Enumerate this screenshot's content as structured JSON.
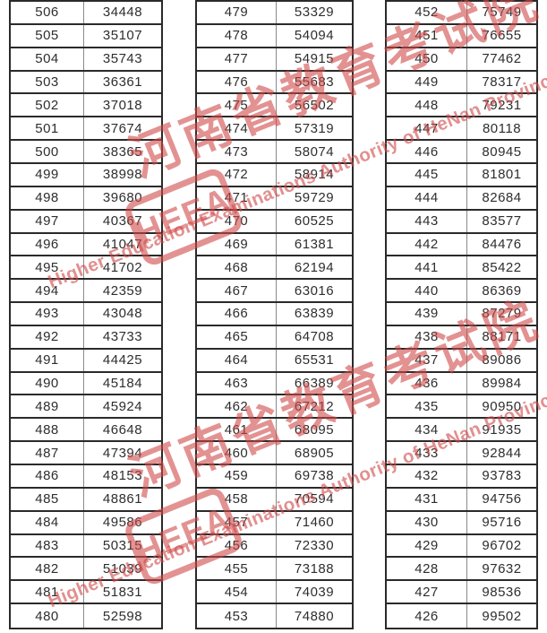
{
  "watermark": {
    "logo_text": "HEEA",
    "cn_text": "河南省教育考试院",
    "en_text": "Higher Education Examinations Authority of HeNan Province",
    "color": "#d04a4a"
  },
  "table": {
    "description": "score / cumulative count segments",
    "groups": [
      {
        "rows": [
          {
            "score": "506",
            "count": "34448"
          },
          {
            "score": "505",
            "count": "35107"
          },
          {
            "score": "504",
            "count": "35743"
          },
          {
            "score": "503",
            "count": "36361"
          },
          {
            "score": "502",
            "count": "37018"
          },
          {
            "score": "501",
            "count": "37674"
          },
          {
            "score": "500",
            "count": "38365"
          },
          {
            "score": "499",
            "count": "38998"
          },
          {
            "score": "498",
            "count": "39680"
          },
          {
            "score": "497",
            "count": "40367"
          },
          {
            "score": "496",
            "count": "41047"
          },
          {
            "score": "495",
            "count": "41702"
          },
          {
            "score": "494",
            "count": "42359"
          },
          {
            "score": "493",
            "count": "43048"
          },
          {
            "score": "492",
            "count": "43733"
          },
          {
            "score": "491",
            "count": "44425"
          },
          {
            "score": "490",
            "count": "45184"
          },
          {
            "score": "489",
            "count": "45924"
          },
          {
            "score": "488",
            "count": "46648"
          },
          {
            "score": "487",
            "count": "47394"
          },
          {
            "score": "486",
            "count": "48153"
          },
          {
            "score": "485",
            "count": "48861"
          },
          {
            "score": "484",
            "count": "49586"
          },
          {
            "score": "483",
            "count": "50315"
          },
          {
            "score": "482",
            "count": "51039"
          },
          {
            "score": "481",
            "count": "51831"
          },
          {
            "score": "480",
            "count": "52598"
          }
        ]
      },
      {
        "rows": [
          {
            "score": "479",
            "count": "53329"
          },
          {
            "score": "478",
            "count": "54094"
          },
          {
            "score": "477",
            "count": "54915"
          },
          {
            "score": "476",
            "count": "55683"
          },
          {
            "score": "475",
            "count": "56502"
          },
          {
            "score": "474",
            "count": "57319"
          },
          {
            "score": "473",
            "count": "58074"
          },
          {
            "score": "472",
            "count": "58914"
          },
          {
            "score": "471",
            "count": "59729"
          },
          {
            "score": "470",
            "count": "60525"
          },
          {
            "score": "469",
            "count": "61381"
          },
          {
            "score": "468",
            "count": "62194"
          },
          {
            "score": "467",
            "count": "63016"
          },
          {
            "score": "466",
            "count": "63839"
          },
          {
            "score": "465",
            "count": "64708"
          },
          {
            "score": "464",
            "count": "65531"
          },
          {
            "score": "463",
            "count": "66389"
          },
          {
            "score": "462",
            "count": "67212"
          },
          {
            "score": "461",
            "count": "68095"
          },
          {
            "score": "460",
            "count": "68905"
          },
          {
            "score": "459",
            "count": "69738"
          },
          {
            "score": "458",
            "count": "70594"
          },
          {
            "score": "457",
            "count": "71460"
          },
          {
            "score": "456",
            "count": "72330"
          },
          {
            "score": "455",
            "count": "73188"
          },
          {
            "score": "454",
            "count": "74039"
          },
          {
            "score": "453",
            "count": "74880"
          }
        ]
      },
      {
        "rows": [
          {
            "score": "452",
            "count": "75749"
          },
          {
            "score": "451",
            "count": "76655"
          },
          {
            "score": "450",
            "count": "77462"
          },
          {
            "score": "449",
            "count": "78317"
          },
          {
            "score": "448",
            "count": "79231"
          },
          {
            "score": "447",
            "count": "80118"
          },
          {
            "score": "446",
            "count": "80945"
          },
          {
            "score": "445",
            "count": "81801"
          },
          {
            "score": "444",
            "count": "82684"
          },
          {
            "score": "443",
            "count": "83577"
          },
          {
            "score": "442",
            "count": "84476"
          },
          {
            "score": "441",
            "count": "85422"
          },
          {
            "score": "440",
            "count": "86369"
          },
          {
            "score": "439",
            "count": "87279"
          },
          {
            "score": "438",
            "count": "88171"
          },
          {
            "score": "437",
            "count": "89086"
          },
          {
            "score": "436",
            "count": "89984"
          },
          {
            "score": "435",
            "count": "90950"
          },
          {
            "score": "434",
            "count": "91935"
          },
          {
            "score": "433",
            "count": "92844"
          },
          {
            "score": "432",
            "count": "93783"
          },
          {
            "score": "431",
            "count": "94756"
          },
          {
            "score": "430",
            "count": "95716"
          },
          {
            "score": "429",
            "count": "96702"
          },
          {
            "score": "428",
            "count": "97632"
          },
          {
            "score": "427",
            "count": "98536"
          },
          {
            "score": "426",
            "count": "99502"
          }
        ]
      }
    ]
  }
}
